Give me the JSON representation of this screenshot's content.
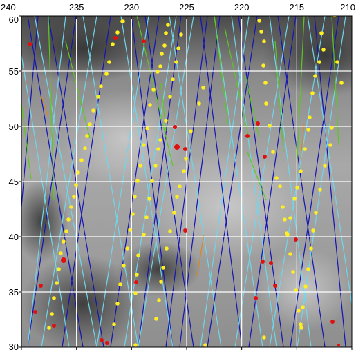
{
  "map": {
    "x_axis": {
      "labels": [
        "240",
        "235",
        "230",
        "225",
        "220",
        "215",
        "210"
      ],
      "values": [
        240,
        235,
        230,
        225,
        220,
        215,
        210
      ],
      "range": [
        240,
        210
      ],
      "direction": "decreasing-left-to-right"
    },
    "y_axis": {
      "labels": [
        "60",
        "55",
        "50",
        "45",
        "40",
        "35",
        "30"
      ],
      "values": [
        60,
        55,
        50,
        45,
        40,
        35,
        30
      ],
      "range": [
        30,
        60
      ]
    },
    "grid": true,
    "grid_color": "#ffffff",
    "background": "grayscale terrain image",
    "track_colors": {
      "dark_blue": "#1414b4",
      "light_blue": "#6fd6ec",
      "green": "#5cc81e",
      "orange": "#d8881e"
    },
    "marker_colors": {
      "yellow": "#ffee22",
      "red": "#e01010"
    }
  }
}
